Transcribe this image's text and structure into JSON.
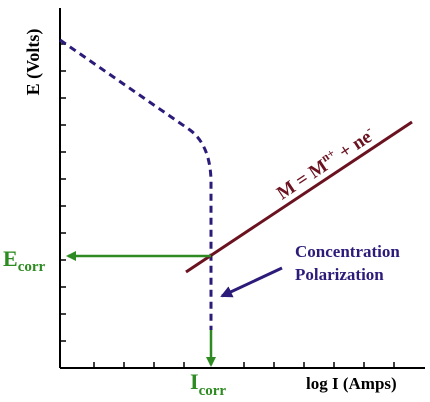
{
  "axes": {
    "y_label": "E (Volts)",
    "x_label": "log I (Amps)"
  },
  "labels": {
    "ecorr_main": "E",
    "ecorr_sub": "corr",
    "icorr_main": "I",
    "icorr_sub": "corr",
    "reaction_text": "M = M",
    "reaction_sup1": "n+",
    "reaction_mid": " + ne",
    "reaction_sup2": "-",
    "concentration_line1": "Concentration",
    "concentration_line2": "Polarization"
  },
  "colors": {
    "axis": "#000000",
    "dashed_curve": "#2d1b7a",
    "reaction_line": "#6b1220",
    "arrows": "#2e8b22",
    "annotation": "#2d1b7a"
  }
}
